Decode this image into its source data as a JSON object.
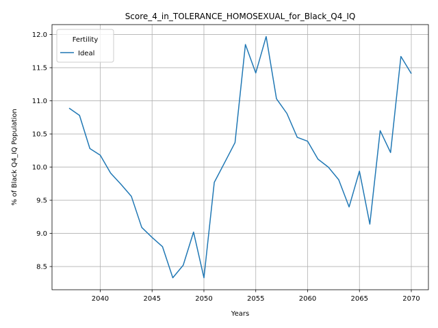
{
  "chart_data": {
    "type": "line",
    "title": "Score_4_in_TOLERANCE_HOMOSEXUAL_for_Black_Q4_IQ",
    "xlabel": "Years",
    "ylabel": "% of Black Q4_IQ Population",
    "xlim": [
      2035.35,
      2071.65
    ],
    "ylim": [
      8.15,
      12.15
    ],
    "xticks": [
      2040,
      2045,
      2050,
      2055,
      2060,
      2065,
      2070
    ],
    "yticks": [
      8.5,
      9.0,
      9.5,
      10.0,
      10.5,
      11.0,
      11.5,
      12.0
    ],
    "grid": true,
    "legend": {
      "title": "Fertility",
      "placement": "top-left"
    },
    "series": [
      {
        "name": "Ideal",
        "color": "#1f77b4",
        "x": [
          2037,
          2038,
          2039,
          2040,
          2041,
          2042,
          2043,
          2044,
          2045,
          2046,
          2047,
          2048,
          2049,
          2050,
          2051,
          2052,
          2053,
          2054,
          2055,
          2056,
          2057,
          2058,
          2059,
          2060,
          2061,
          2062,
          2063,
          2064,
          2065,
          2066,
          2067,
          2068,
          2069,
          2070
        ],
        "values": [
          10.89,
          10.78,
          10.28,
          10.18,
          9.91,
          9.74,
          9.56,
          9.09,
          8.94,
          8.8,
          8.33,
          8.52,
          9.02,
          8.33,
          9.77,
          10.07,
          10.37,
          11.85,
          11.42,
          11.97,
          11.03,
          10.81,
          10.45,
          10.39,
          10.12,
          10.0,
          9.81,
          9.4,
          9.94,
          9.14,
          10.55,
          10.22,
          11.67,
          11.41
        ]
      }
    ]
  }
}
